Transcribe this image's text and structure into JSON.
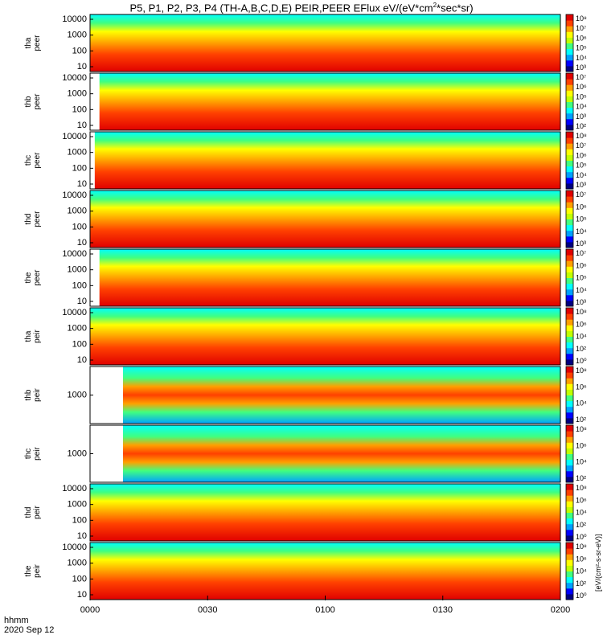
{
  "title_prefix": "P5, P1, P2, P3, P4 (TH-A,B,C,D,E) PEIR,PEER EFlux eV/(eV*cm",
  "title_sup": "2",
  "title_suffix": "*sec*sr)",
  "footer": {
    "time_label": "hhmm",
    "date_label": "2020 Sep 12"
  },
  "colorbar_units": "[eV/(cm²-s-sr-eV)]",
  "colors": [
    "#000080",
    "#0000ff",
    "#00a0ff",
    "#00ffff",
    "#40ff80",
    "#c0ff00",
    "#ffff00",
    "#ffa000",
    "#ff4000",
    "#e00000"
  ],
  "chart_data": {
    "type": "heatmap",
    "x_ticks": [
      "0000",
      "0030",
      "0100",
      "0130",
      "0200"
    ],
    "x_range": [
      "00:00",
      "02:00"
    ],
    "panels": [
      {
        "name": "tha peer",
        "ylabel": [
          "tha",
          "peer"
        ],
        "yticks": [
          "10000",
          "1000",
          "100",
          "10"
        ],
        "cbticks": [
          "10⁸",
          "10⁷",
          "10⁶",
          "10⁵",
          "10⁴",
          "10³"
        ],
        "data_start": 0.0
      },
      {
        "name": "thb peer",
        "ylabel": [
          "thb",
          "peer"
        ],
        "yticks": [
          "10000",
          "1000",
          "100",
          "10"
        ],
        "cbticks": [
          "10⁷",
          "10⁶",
          "10⁵",
          "10⁴",
          "10³",
          "10²"
        ],
        "data_start": 0.02
      },
      {
        "name": "thc peer",
        "ylabel": [
          "thc",
          "peer"
        ],
        "yticks": [
          "10000",
          "1000",
          "100",
          "10"
        ],
        "cbticks": [
          "10⁸",
          "10⁷",
          "10⁶",
          "10⁵",
          "10⁴",
          "10³"
        ],
        "data_start": 0.01
      },
      {
        "name": "thd peer",
        "ylabel": [
          "thd",
          "peer"
        ],
        "yticks": [
          "10000",
          "1000",
          "100",
          "10"
        ],
        "cbticks": [
          "10⁷",
          "10⁶",
          "10⁵",
          "10⁴",
          "10³"
        ],
        "data_start": 0.0
      },
      {
        "name": "the peer",
        "ylabel": [
          "the",
          "peer"
        ],
        "yticks": [
          "10000",
          "1000",
          "100",
          "10"
        ],
        "cbticks": [
          "10⁷",
          "10⁶",
          "10⁵",
          "10⁴",
          "10³"
        ],
        "data_start": 0.02
      },
      {
        "name": "tha peir",
        "ylabel": [
          "tha",
          "peir"
        ],
        "yticks": [
          "10000",
          "1000",
          "100",
          "10"
        ],
        "cbticks": [
          "10⁸",
          "10⁶",
          "10⁴",
          "10²",
          "10⁰"
        ],
        "data_start": 0.0
      },
      {
        "name": "thb peir",
        "ylabel": [
          "thb",
          "peir"
        ],
        "yticks": [
          "1000"
        ],
        "cbticks": [
          "10⁸",
          "10⁶",
          "10⁴",
          "10²"
        ],
        "data_start": 0.07
      },
      {
        "name": "thc peir",
        "ylabel": [
          "thc",
          "peir"
        ],
        "yticks": [
          "1000"
        ],
        "cbticks": [
          "10⁸",
          "10⁶",
          "10⁴",
          "10²"
        ],
        "data_start": 0.07
      },
      {
        "name": "thd peir",
        "ylabel": [
          "thd",
          "peir"
        ],
        "yticks": [
          "10000",
          "1000",
          "100",
          "10"
        ],
        "cbticks": [
          "10⁸",
          "10⁶",
          "10⁴",
          "10²",
          "10⁰"
        ],
        "data_start": 0.0
      },
      {
        "name": "the peir",
        "ylabel": [
          "the",
          "peir"
        ],
        "yticks": [
          "10000",
          "1000",
          "100",
          "10"
        ],
        "cbticks": [
          "10⁸",
          "10⁶",
          "10⁴",
          "10²",
          "10⁰"
        ],
        "data_start": 0.0
      }
    ]
  }
}
